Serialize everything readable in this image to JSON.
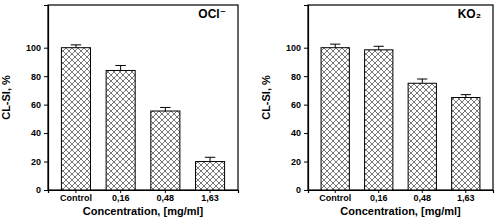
{
  "chart_data": [
    {
      "type": "bar",
      "title": "OCl⁻",
      "x_label": "Concentration, [mg/ml]",
      "y_label": "CL-SI, %",
      "categories": [
        "Control",
        "0,16",
        "0,48",
        "1,63"
      ],
      "values": [
        100,
        84,
        55.5,
        20
      ],
      "errors": [
        2,
        3.5,
        2.5,
        3
      ],
      "color": "#555555",
      "ylim": [
        0,
        130
      ],
      "yticks": [
        0,
        20,
        40,
        60,
        80,
        100
      ]
    },
    {
      "type": "bar",
      "title": "KO₂",
      "x_label": "Concentration, [mg/ml]",
      "y_label": "CL-SI, %",
      "categories": [
        "Control",
        "0,16",
        "0,48",
        "1,63"
      ],
      "values": [
        100,
        98.5,
        75,
        65
      ],
      "errors": [
        2.5,
        2.5,
        3,
        2
      ],
      "color": "#555555",
      "ylim": [
        0,
        130
      ],
      "yticks": [
        0,
        20,
        40,
        60,
        80,
        100
      ]
    }
  ]
}
